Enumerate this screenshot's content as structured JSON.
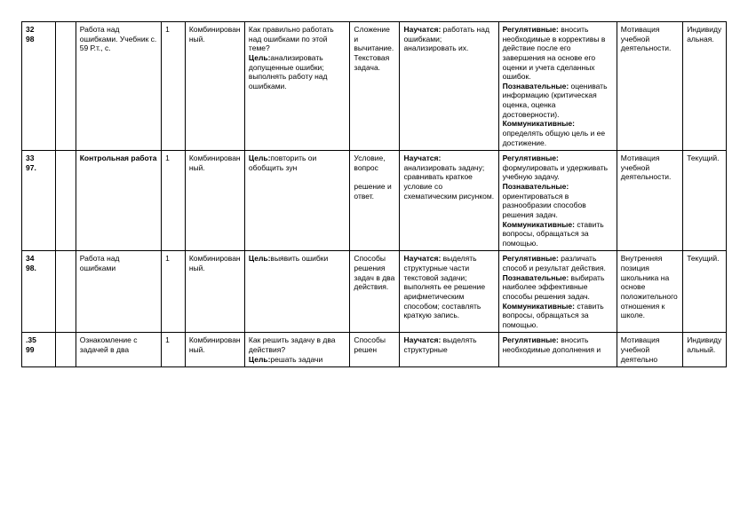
{
  "rows": [
    {
      "c0": "32\n98",
      "c1": "",
      "c2": " Работа над ошибками. Учебник с. 59 Р.т., с.",
      "c3": "1",
      "c4": "Комбинированный.",
      "c5_q": "Как правильно работать над ошибками по этой теме?",
      "c5_goal_label": "Цель:",
      "c5_goal": "анализировать допущенные ошибки; выполнять работу над ошибками.",
      "c6": "Сложение и вычитание. Текстовая задача.",
      "c7_label": "Научатся:",
      "c7": "работать над ошибками; анализировать их.",
      "c8_reg_label": "Регулятивные:",
      "c8_reg": "вносить необходимые в коррективы в действие после его завершения на основе его оценки и учета сделанных ошибок.",
      "c8_poz_label": "Познавательные:",
      "c8_poz": "оценивать информацию (критическая оценка, оценка достоверности).",
      "c8_kom_label": "Коммуникативные:",
      "c8_kom": "определять общую цель и ее достижение.",
      "c9": "Мотивация учебной деятельности.",
      "c10": "Индивидуальная."
    },
    {
      "c0": "33\n97.",
      "c1": "",
      "c2": "Контрольная работа",
      "c2_bold": true,
      "c3": "1",
      "c4": "Комбинированный.",
      "c5_q": "",
      "c5_goal_label": "Цель:",
      "c5_goal": "повторить ои обобщить зун",
      "c6": "Условие, вопрос\n\nрешение и ответ.",
      "c7_label": "Научатся:",
      "c7": "анализировать задачу; сравнивать краткое условие со схематическим рисунком.",
      "c8_reg_label": "Регулятивные:",
      "c8_reg": "формулировать и удерживать учебную задачу.",
      "c8_poz_label": "Познавательные:",
      "c8_poz": "ориентироваться в разнообразии способов решения задач.",
      "c8_kom_label": "Коммуникативные:",
      "c8_kom": "ставить вопросы, обращаться за помощью.",
      "c9": "Мотивация учебной деятельности.",
      "c10": "Текущий."
    },
    {
      "c0": "34\n98.",
      "c1": "",
      "c2": "Работа над ошибками",
      "c3": "1",
      "c4": "Комбинированный.",
      "c5_q": "",
      "c5_goal_label": "Цель:",
      "c5_goal": "выявить ошибки",
      "c6": "Способы решения задач в два действия.",
      "c7_label": "Научатся:",
      "c7": "выделять структурные части текстовой задачи; выполнять ее решение арифметическим способом; составлять краткую запись.",
      "c8_reg_label": "Регулятивные:",
      "c8_reg": "различать способ и результат действия.",
      "c8_poz_label": "Познавательные:",
      "c8_poz": "выбирать наиболее эффективные способы решения задач.",
      "c8_kom_label": "Коммуникативные:",
      "c8_kom": "ставить вопросы, обращаться за помощью.",
      "c9": "Внутренняя позиция школьника на основе положительного отношения к школе.",
      "c10": "Текущий."
    },
    {
      "c0": ".35\n99",
      "c1": "",
      "c2": "Ознакомление с  задачей в два",
      "c3": "1",
      "c4": "Комбинированный.",
      "c5_q": "Как решить задачу в два действия?",
      "c5_goal_label": "Цель:",
      "c5_goal": "решать задачи",
      "c6": "Способы решен",
      "c7_label": "Научатся:",
      "c7": "выделять структурные",
      "c8_reg_label": "Регулятивные:",
      "c8_reg": "вносить необходимые дополнения и",
      "c8_poz_label": "",
      "c8_poz": "",
      "c8_kom_label": "",
      "c8_kom": "",
      "c9": "Мотивация учебной деятельно",
      "c10": "Индивидуальный."
    }
  ]
}
